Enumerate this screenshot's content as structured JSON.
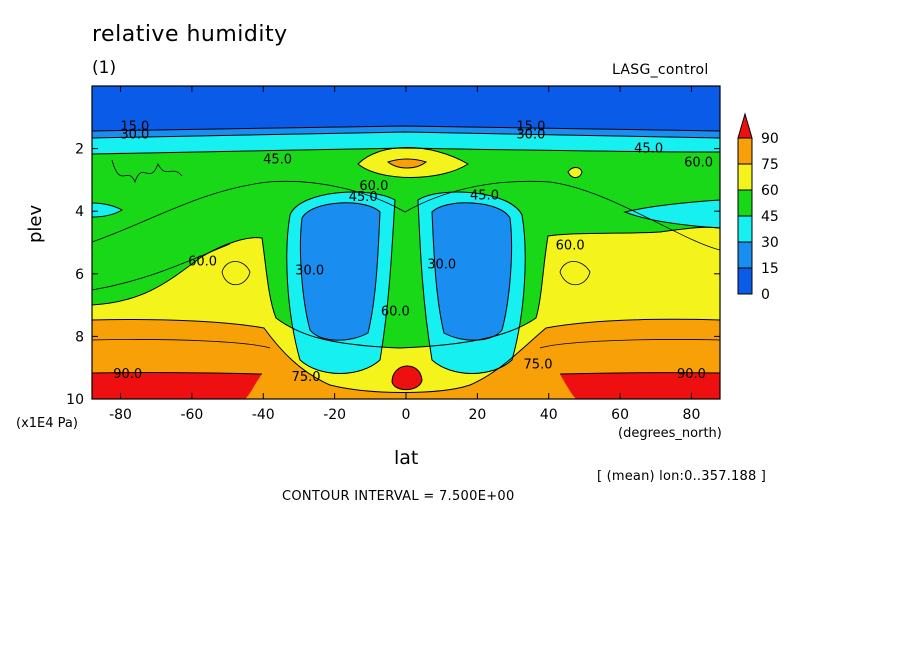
{
  "title": "relative humidity",
  "panel_label": "(1)",
  "dataset": "LASG_control",
  "y_units": "(x1E4 Pa)",
  "x_units": "(degrees_north)",
  "x_label": "lat",
  "y_label": "plev",
  "average_note": "[ (mean) lon:0..357.188 ]",
  "contour_interval": "CONTOUR INTERVAL = 7.500E+00",
  "colors": {
    "band_0": "#0a5be8",
    "band_15": "#1a8ef0",
    "band_30": "#17f0f0",
    "band_45": "#18d818",
    "band_60": "#f4f41c",
    "band_75": "#f8a008",
    "band_90": "#ee1010"
  },
  "chart_data": {
    "type": "contour",
    "xlim": [
      -88,
      88
    ],
    "ylim": [
      10,
      0
    ],
    "y_reversed": true,
    "x_ticks": [
      "-80",
      "-60",
      "-40",
      "-20",
      "0",
      "20",
      "40",
      "60",
      "80"
    ],
    "y_ticks": [
      "2",
      "4",
      "6",
      "8",
      "10"
    ],
    "levels": [
      0,
      15,
      30,
      45,
      60,
      75,
      90
    ],
    "colorbar_labels": [
      "90",
      "75",
      "60",
      "45",
      "30",
      "15",
      "0"
    ],
    "contour_labels": [
      {
        "text": "15.0",
        "x": -76,
        "y": 1.3
      },
      {
        "text": "30.0",
        "x": -76,
        "y": 1.55
      },
      {
        "text": "45.0",
        "x": -36,
        "y": 2.35
      },
      {
        "text": "15.0",
        "x": 35,
        "y": 1.3
      },
      {
        "text": "30.0",
        "x": 35,
        "y": 1.55
      },
      {
        "text": "45.0",
        "x": 68,
        "y": 2.0
      },
      {
        "text": "60.0",
        "x": 82,
        "y": 2.45
      },
      {
        "text": "60.0",
        "x": -9,
        "y": 3.2
      },
      {
        "text": "45.0",
        "x": -12,
        "y": 3.55
      },
      {
        "text": "45.0",
        "x": 22,
        "y": 3.5
      },
      {
        "text": "30.0",
        "x": -27,
        "y": 5.9
      },
      {
        "text": "30.0",
        "x": 10,
        "y": 5.7
      },
      {
        "text": "60.0",
        "x": -57,
        "y": 5.6
      },
      {
        "text": "60.0",
        "x": 46,
        "y": 5.1
      },
      {
        "text": "60.0",
        "x": -3,
        "y": 7.2
      },
      {
        "text": "75.0",
        "x": -28,
        "y": 9.3
      },
      {
        "text": "75.0",
        "x": 37,
        "y": 8.9
      },
      {
        "text": "90.0",
        "x": -78,
        "y": 9.2
      },
      {
        "text": "90.0",
        "x": 80,
        "y": 9.2
      }
    ]
  }
}
